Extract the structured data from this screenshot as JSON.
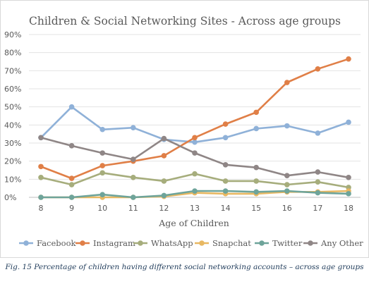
{
  "chart_data": {
    "type": "line",
    "title": "Children & Social Networking Sites - Across age groups",
    "xlabel": "Age of Children",
    "ylabel": "",
    "categories": [
      "8",
      "9",
      "10",
      "11",
      "12",
      "13",
      "14",
      "15",
      "16",
      "17",
      "18"
    ],
    "y_ticks": [
      "0%",
      "10%",
      "20%",
      "30%",
      "40%",
      "50%",
      "60%",
      "70%",
      "80%",
      "90%"
    ],
    "ylim": [
      0,
      90
    ],
    "grid": true,
    "legend_position": "bottom",
    "series": [
      {
        "name": "Facebook",
        "color": "#8fb1d8",
        "values": [
          33,
          50,
          37.5,
          38.5,
          32,
          30.5,
          33,
          38,
          39.5,
          35.5,
          41.5
        ]
      },
      {
        "name": "Instagram",
        "color": "#e07f47",
        "values": [
          17,
          10.5,
          17.5,
          20,
          23,
          33,
          40.5,
          47,
          63.5,
          71,
          76.5
        ]
      },
      {
        "name": "WhatsApp",
        "color": "#a6ad7c",
        "values": [
          11,
          7,
          13.5,
          11,
          9,
          13,
          9,
          9,
          7,
          8.5,
          5.5
        ]
      },
      {
        "name": "Snapchat",
        "color": "#e8b862",
        "values": [
          0,
          0,
          0,
          0,
          0.5,
          2.5,
          2,
          2,
          3,
          3,
          3.5
        ]
      },
      {
        "name": "Twitter",
        "color": "#6ea49a",
        "values": [
          0,
          0,
          1.5,
          0,
          1,
          3.5,
          3.5,
          3,
          3.5,
          2.5,
          2
        ]
      },
      {
        "name": "Any Other",
        "color": "#8f8686",
        "values": [
          33,
          28.5,
          24.5,
          21,
          32.5,
          24.5,
          18,
          16.5,
          12,
          14,
          11
        ]
      }
    ]
  },
  "caption": "Fig. 15 Percentage of children having different social networking accounts – across age groups"
}
